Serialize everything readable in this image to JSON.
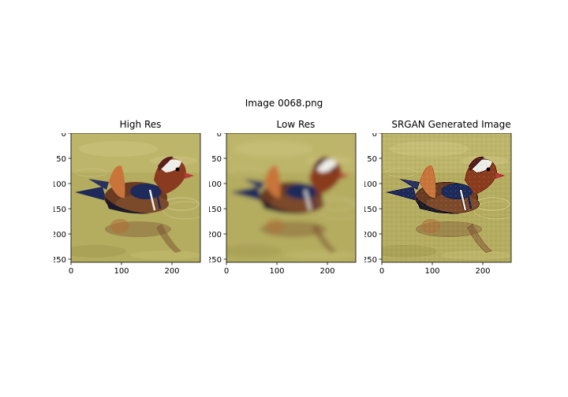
{
  "figure": {
    "suptitle": "Image 0068.png",
    "panels": [
      {
        "title": "High Res",
        "quality": "sharp"
      },
      {
        "title": "Low Res",
        "quality": "blurry"
      },
      {
        "title": "SRGAN Generated Image",
        "quality": "oversharpened"
      }
    ],
    "y_ticks": [
      "0",
      "50",
      "100",
      "150",
      "200",
      "250"
    ],
    "x_ticks": [
      "0",
      "100",
      "200"
    ],
    "image_size": [
      256,
      256
    ]
  },
  "colors": {
    "water": "#b4ac5e",
    "water_light": "#cdc47a",
    "duck_orange": "#c8743a",
    "duck_navy": "#1e2a5a",
    "duck_brown": "#6b3a22",
    "duck_white": "#eeeee8",
    "beak_red": "#b83a3a"
  }
}
